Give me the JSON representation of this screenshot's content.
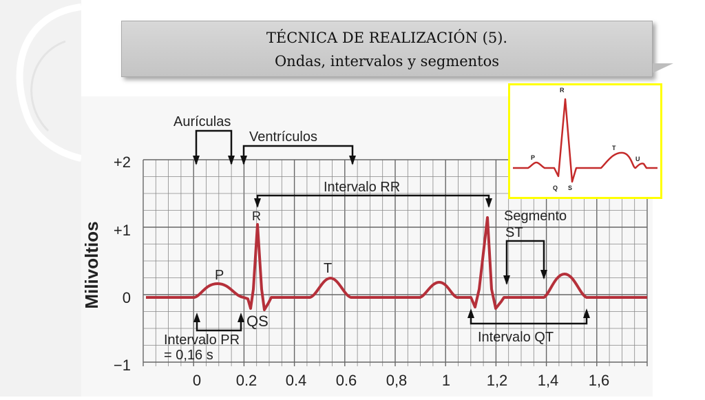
{
  "title": {
    "line1": "TÉCNICA DE REALIZACIÓN (5).",
    "line2": "Ondas, intervalos y segmentos"
  },
  "ecg": {
    "ylabel": "Milivoltios",
    "yticks": [
      "+2",
      "+1",
      "0",
      "−1"
    ],
    "xticks": [
      "0",
      "0.2",
      "0.4",
      "0.6",
      "0,8",
      "1",
      "1,2",
      "1,4",
      "1,6"
    ],
    "labels": {
      "auriculas": "Aurículas",
      "ventriculos": "Ventrículos",
      "intervalo_rr": "Intervalo RR",
      "segmento_st_1": "Segmento",
      "segmento_st_2": "ST",
      "intervalo_pr_1": "Intervalo PR",
      "intervalo_pr_2": "= 0,16 s",
      "intervalo_qt": "Intervalo QT",
      "P": "P",
      "R": "R",
      "T": "T",
      "QS": "QS"
    },
    "trace_color": "#b5303a"
  },
  "inset": {
    "border_color": "#ffff00",
    "labels": {
      "R": "R",
      "P": "P",
      "T": "T",
      "U": "U",
      "Q": "Q",
      "S": "S"
    },
    "trace_color": "#c42a2a"
  }
}
